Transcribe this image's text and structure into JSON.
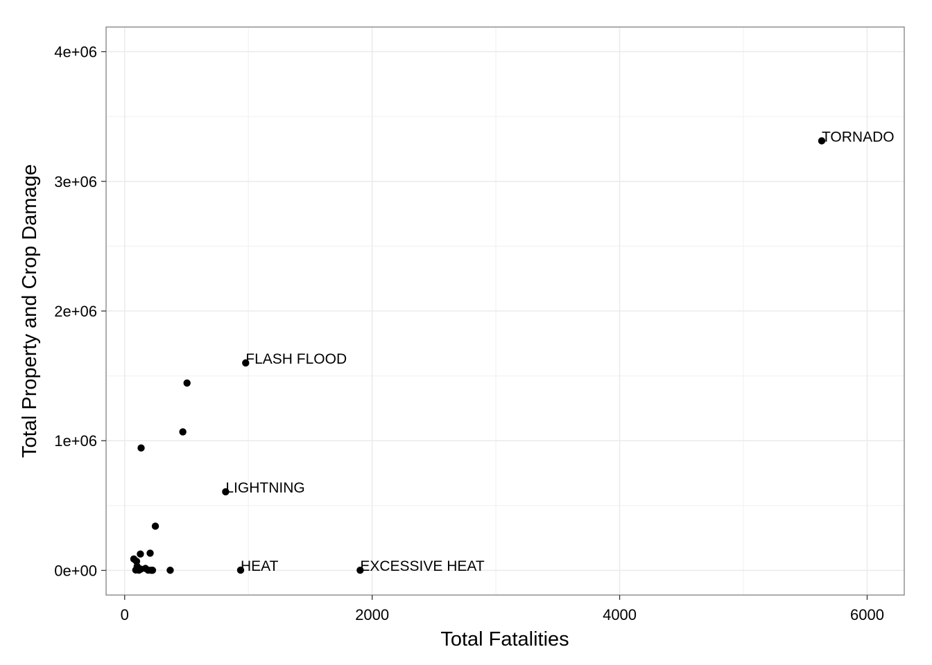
{
  "chart_data": {
    "type": "scatter",
    "title": "",
    "xlabel": "Total Fatalities",
    "ylabel": "Total Property and Crop Damage",
    "xlim": [
      -150,
      6300
    ],
    "ylim": [
      -190000,
      4190000
    ],
    "x_ticks": [
      0,
      2000,
      4000,
      6000
    ],
    "x_tick_labels": [
      "0",
      "2000",
      "4000",
      "6000"
    ],
    "y_ticks": [
      0,
      1000000,
      2000000,
      3000000,
      4000000
    ],
    "y_tick_labels": [
      "0e+00",
      "1e+06",
      "2e+06",
      "3e+06",
      "4e+06"
    ],
    "grid": true,
    "point_color": "#000000",
    "panel_border_color": "#7f7f7f",
    "grid_color": "#ebebeb",
    "points": [
      {
        "x": 5633,
        "y": 3312000,
        "label": "TORNADO"
      },
      {
        "x": 978,
        "y": 1600000,
        "label": "FLASH FLOOD"
      },
      {
        "x": 816,
        "y": 606000,
        "label": "LIGHTNING"
      },
      {
        "x": 937,
        "y": 2000,
        "label": "HEAT"
      },
      {
        "x": 1903,
        "y": 1500,
        "label": "EXCESSIVE HEAT"
      },
      {
        "x": 504,
        "y": 1445000
      },
      {
        "x": 470,
        "y": 1068000
      },
      {
        "x": 133,
        "y": 944000
      },
      {
        "x": 248,
        "y": 341000
      },
      {
        "x": 206,
        "y": 133000
      },
      {
        "x": 127,
        "y": 126000
      },
      {
        "x": 74,
        "y": 88000
      },
      {
        "x": 96,
        "y": 70000
      },
      {
        "x": 101,
        "y": 30000
      },
      {
        "x": 130,
        "y": 10000
      },
      {
        "x": 168,
        "y": 15000
      },
      {
        "x": 90,
        "y": 3000
      },
      {
        "x": 115,
        "y": 2000
      },
      {
        "x": 190,
        "y": 2000
      },
      {
        "x": 215,
        "y": 1000
      },
      {
        "x": 225,
        "y": 1000
      },
      {
        "x": 368,
        "y": 1000
      }
    ]
  }
}
